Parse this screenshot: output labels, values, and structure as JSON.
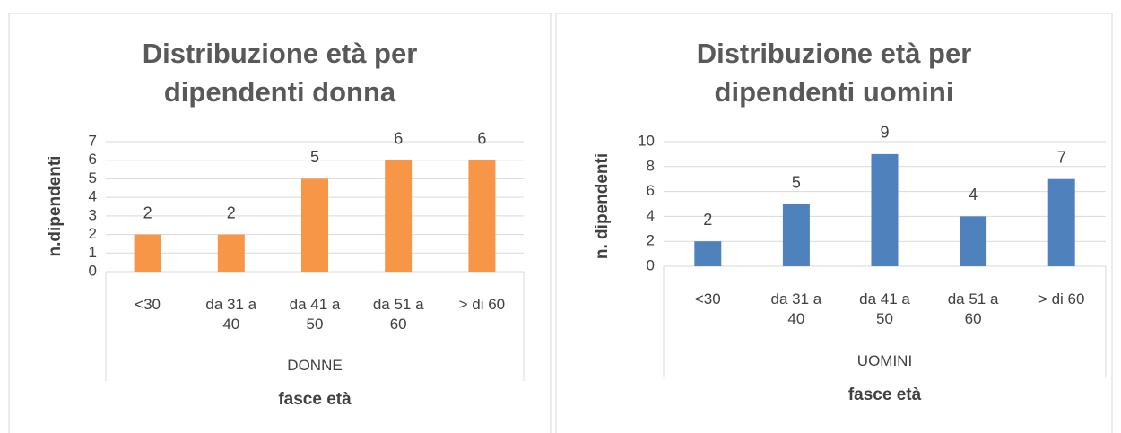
{
  "chart_data": [
    {
      "type": "bar",
      "title": "Distribuzione età per dipendenti donna",
      "y_label": "n.dipendenti",
      "group_label": "DONNE",
      "x_label": "fasce età",
      "categories": [
        "<30",
        "da 31 a 40",
        "da 41 a 50",
        "da 51 a 60",
        "> di 60"
      ],
      "values": [
        2,
        2,
        5,
        6,
        6
      ],
      "color": "#f79646",
      "ylim": [
        0,
        7
      ],
      "yticks": [
        0,
        1,
        2,
        3,
        4,
        5,
        6,
        7
      ]
    },
    {
      "type": "bar",
      "title": "Distribuzione età per dipendenti uomini",
      "y_label": "n. dipendenti",
      "group_label": "UOMINI",
      "x_label": "fasce età",
      "categories": [
        "<30",
        "da 31 a 40",
        "da 41 a 50",
        "da 51 a 60",
        "> di 60"
      ],
      "values": [
        2,
        5,
        9,
        4,
        7
      ],
      "color": "#4f81bd",
      "ylim": [
        0,
        10
      ],
      "yticks": [
        0,
        2,
        4,
        6,
        8,
        10
      ]
    }
  ]
}
